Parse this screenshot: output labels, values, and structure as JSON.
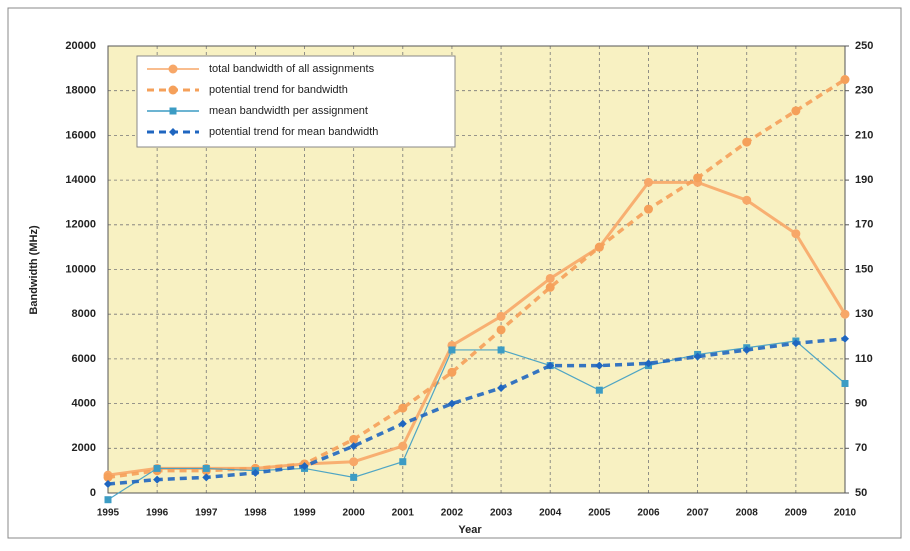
{
  "chart_data": {
    "type": "line",
    "xlabel": "Year",
    "ylabel": "Bandwidth (MHz)",
    "categories": [
      "1995",
      "1996",
      "1997",
      "1998",
      "1999",
      "2000",
      "2001",
      "2002",
      "2003",
      "2004",
      "2005",
      "2006",
      "2007",
      "2008",
      "2009",
      "2010"
    ],
    "series": [
      {
        "name": "total bandwidth of all assignments",
        "color": "#f7a768",
        "dash": false,
        "marker": "circle",
        "values": [
          800,
          1100,
          1100,
          1100,
          1300,
          1400,
          2100,
          6600,
          7900,
          9600,
          11000,
          13900,
          13900,
          13100,
          11600,
          8000
        ]
      },
      {
        "name": "potential trend for bandwidth",
        "color": "#f5a05a",
        "dash": true,
        "marker": "circle",
        "values": [
          700,
          1000,
          1000,
          1100,
          1300,
          2400,
          3800,
          5400,
          7300,
          9200,
          11000,
          12700,
          14100,
          15700,
          17100,
          18500
        ]
      },
      {
        "name": "mean bandwidth per assignment",
        "color": "#3c9cc4",
        "dash": false,
        "marker": "square",
        "axis": "y2",
        "values": [
          47,
          61,
          61,
          60,
          61,
          57,
          64,
          114,
          114,
          107,
          96,
          107,
          112,
          115,
          118,
          99
        ]
      },
      {
        "name": "potential trend for mean bandwidth",
        "color": "#1f66c0",
        "dash": true,
        "marker": "diamond",
        "axis": "y2",
        "values": [
          54,
          56,
          57,
          59,
          62,
          71,
          81,
          90,
          97,
          107,
          107,
          108,
          111,
          114,
          117,
          119
        ]
      }
    ],
    "ylim": [
      0,
      20000
    ],
    "yticks": [
      0,
      2000,
      4000,
      6000,
      8000,
      10000,
      12000,
      14000,
      16000,
      18000,
      20000
    ],
    "y2lim": [
      50,
      250
    ],
    "y2ticks": [
      50,
      70,
      90,
      110,
      130,
      150,
      170,
      190,
      210,
      230,
      250
    ],
    "grid": true,
    "legend": "upper left"
  }
}
